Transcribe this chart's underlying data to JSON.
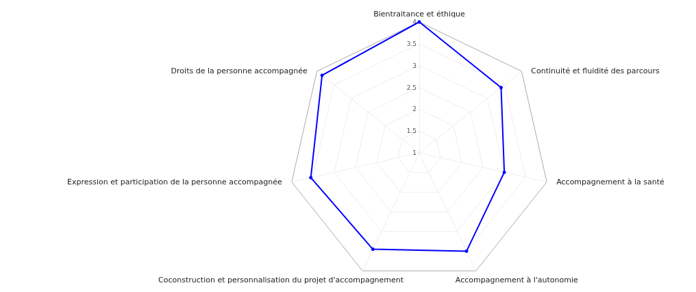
{
  "chart_data": {
    "type": "radar",
    "categories": [
      "Bientraitance et éthique",
      "Continuité et fluidité des parcours",
      "Accompagnement à la santé",
      "Accompagnement à l'autonomie",
      "Coconstruction et personnalisation du projet d'accompagnement",
      "Expression et participation de la personne accompagnée",
      "Droits de la personne accompagnée"
    ],
    "series": [
      {
        "color": "#0000ff",
        "values": [
          4,
          3.4,
          3,
          3.5,
          3.45,
          3.55,
          3.85
        ]
      }
    ],
    "ylim": [
      1,
      4
    ],
    "yticks": [
      1,
      1.5,
      2,
      2.5,
      3,
      3.5,
      4
    ],
    "grid": true,
    "marker": "circle",
    "line_style": "solid"
  }
}
